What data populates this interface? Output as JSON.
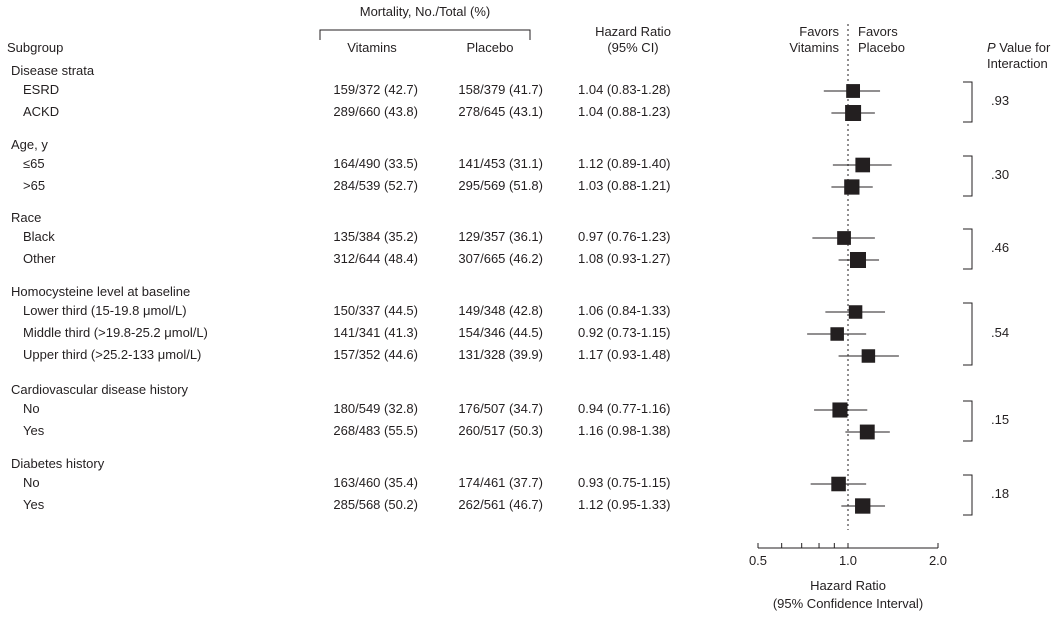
{
  "header": {
    "mortality_label": "Mortality, No./Total (%)",
    "subgroup_label": "Subgroup",
    "vitamins_label": "Vitamins",
    "placebo_label": "Placebo",
    "hr_label_1": "Hazard Ratio",
    "hr_label_2": "(95% CI)",
    "favors_left_1": "Favors",
    "favors_left_2": "Vitamins",
    "favors_right_1": "Favors",
    "favors_right_2": "Placebo",
    "pval_italic": "P",
    "pval_rest": " Value for",
    "pval_line2": "Interaction"
  },
  "groups": [
    {
      "name": "Disease strata",
      "p_value": ".93",
      "rows": [
        {
          "label": "ESRD",
          "vitamins": "159/372 (42.7)",
          "placebo": "158/379 (41.7)",
          "hr_text": "1.04 (0.83-1.28)"
        },
        {
          "label": "ACKD",
          "vitamins": "289/660 (43.8)",
          "placebo": "278/645 (43.1)",
          "hr_text": "1.04 (0.88-1.23)"
        }
      ]
    },
    {
      "name": "Age, y",
      "p_value": ".30",
      "rows": [
        {
          "label": "≤65",
          "vitamins": "164/490 (33.5)",
          "placebo": "141/453 (31.1)",
          "hr_text": "1.12 (0.89-1.40)"
        },
        {
          "label": ">65",
          "vitamins": "284/539 (52.7)",
          "placebo": "295/569 (51.8)",
          "hr_text": "1.03 (0.88-1.21)"
        }
      ]
    },
    {
      "name": "Race",
      "p_value": ".46",
      "rows": [
        {
          "label": "Black",
          "vitamins": "135/384 (35.2)",
          "placebo": "129/357 (36.1)",
          "hr_text": "0.97 (0.76-1.23)"
        },
        {
          "label": "Other",
          "vitamins": "312/644 (48.4)",
          "placebo": "307/665 (46.2)",
          "hr_text": "1.08 (0.93-1.27)"
        }
      ]
    },
    {
      "name": "Homocysteine level at baseline",
      "p_value": ".54",
      "rows": [
        {
          "label": "Lower third (15-19.8 μmol/L)",
          "vitamins": "150/337 (44.5)",
          "placebo": "149/348 (42.8)",
          "hr_text": "1.06 (0.84-1.33)"
        },
        {
          "label": "Middle third (>19.8-25.2 μmol/L)",
          "vitamins": "141/341 (41.3)",
          "placebo": "154/346 (44.5)",
          "hr_text": "0.92 (0.73-1.15)"
        },
        {
          "label": "Upper third (>25.2-133 μmol/L)",
          "vitamins": "157/352 (44.6)",
          "placebo": "131/328 (39.9)",
          "hr_text": "1.17 (0.93-1.48)"
        }
      ]
    },
    {
      "name": "Cardiovascular disease history",
      "p_value": ".15",
      "rows": [
        {
          "label": "No",
          "vitamins": "180/549 (32.8)",
          "placebo": "176/507 (34.7)",
          "hr_text": "0.94 (0.77-1.16)"
        },
        {
          "label": "Yes",
          "vitamins": "268/483 (55.5)",
          "placebo": "260/517 (50.3)",
          "hr_text": "1.16 (0.98-1.38)"
        }
      ]
    },
    {
      "name": "Diabetes history",
      "p_value": ".18",
      "rows": [
        {
          "label": "No",
          "vitamins": "163/460 (35.4)",
          "placebo": "174/461 (37.7)",
          "hr_text": "0.93 (0.75-1.15)"
        },
        {
          "label": "Yes",
          "vitamins": "285/568 (50.2)",
          "placebo": "262/561 (46.7)",
          "hr_text": "1.12 (0.95-1.33)"
        }
      ]
    }
  ],
  "chart_data": {
    "type": "forest",
    "x_scale": "log",
    "xlim": [
      0.5,
      2.0
    ],
    "reference_line": 1.0,
    "x_ticks": [
      0.5,
      0.6,
      0.7,
      0.8,
      0.9,
      1.0,
      2.0
    ],
    "x_tick_labels": [
      "0.5",
      "1.0",
      "2.0"
    ],
    "xlabel_1": "Hazard Ratio",
    "xlabel_2": "(95% Confidence Interval)",
    "points": [
      {
        "label": "ESRD",
        "hr": 1.04,
        "lo": 0.83,
        "hi": 1.28,
        "weight": 751
      },
      {
        "label": "ACKD",
        "hr": 1.04,
        "lo": 0.88,
        "hi": 1.23,
        "weight": 1305
      },
      {
        "label": "≤65",
        "hr": 1.12,
        "lo": 0.89,
        "hi": 1.4,
        "weight": 943
      },
      {
        "label": ">65",
        "hr": 1.03,
        "lo": 0.88,
        "hi": 1.21,
        "weight": 1108
      },
      {
        "label": "Black",
        "hr": 0.97,
        "lo": 0.76,
        "hi": 1.23,
        "weight": 741
      },
      {
        "label": "Other",
        "hr": 1.08,
        "lo": 0.93,
        "hi": 1.27,
        "weight": 1309
      },
      {
        "label": "Lower third (15-19.8 μmol/L)",
        "hr": 1.06,
        "lo": 0.84,
        "hi": 1.33,
        "weight": 685
      },
      {
        "label": "Middle third (>19.8-25.2 μmol/L)",
        "hr": 0.92,
        "lo": 0.73,
        "hi": 1.15,
        "weight": 687
      },
      {
        "label": "Upper third (>25.2-133 μmol/L)",
        "hr": 1.17,
        "lo": 0.93,
        "hi": 1.48,
        "weight": 680
      },
      {
        "label": "No",
        "hr": 0.94,
        "lo": 0.77,
        "hi": 1.16,
        "weight": 1056
      },
      {
        "label": "Yes",
        "hr": 1.16,
        "lo": 0.98,
        "hi": 1.38,
        "weight": 1000
      },
      {
        "label": "No",
        "hr": 0.93,
        "lo": 0.75,
        "hi": 1.15,
        "weight": 921
      },
      {
        "label": "Yes",
        "hr": 1.12,
        "lo": 0.95,
        "hi": 1.33,
        "weight": 1129
      }
    ]
  }
}
